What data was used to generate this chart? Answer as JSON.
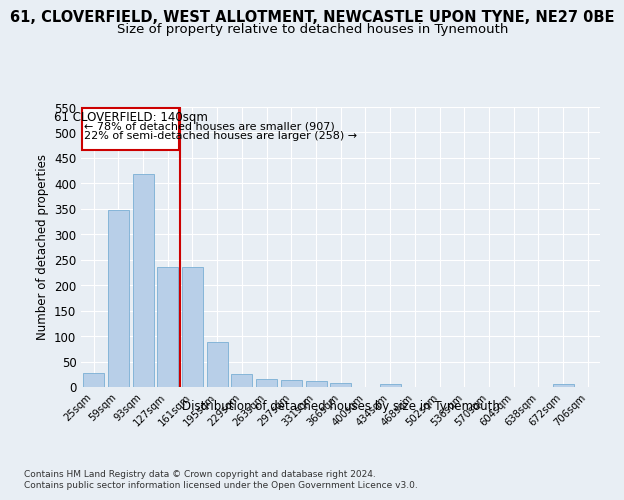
{
  "title": "61, CLOVERFIELD, WEST ALLOTMENT, NEWCASTLE UPON TYNE, NE27 0BE",
  "subtitle": "Size of property relative to detached houses in Tynemouth",
  "xlabel": "Distribution of detached houses by size in Tynemouth",
  "ylabel": "Number of detached properties",
  "bar_labels": [
    "25sqm",
    "59sqm",
    "93sqm",
    "127sqm",
    "161sqm",
    "195sqm",
    "229sqm",
    "263sqm",
    "297sqm",
    "331sqm",
    "366sqm",
    "400sqm",
    "434sqm",
    "468sqm",
    "502sqm",
    "536sqm",
    "570sqm",
    "604sqm",
    "638sqm",
    "672sqm",
    "706sqm"
  ],
  "bar_values": [
    28,
    348,
    418,
    235,
    236,
    88,
    25,
    15,
    14,
    11,
    7,
    0,
    5,
    0,
    0,
    0,
    0,
    0,
    0,
    5,
    0
  ],
  "bar_color": "#b8cfe8",
  "bar_edge_color": "#7aafd4",
  "property_line_label": "61 CLOVERFIELD: 140sqm",
  "annotation_line1": "← 78% of detached houses are smaller (907)",
  "annotation_line2": "22% of semi-detached houses are larger (258) →",
  "annotation_box_color": "#cc0000",
  "ylim": [
    0,
    550
  ],
  "footnote1": "Contains HM Land Registry data © Crown copyright and database right 2024.",
  "footnote2": "Contains public sector information licensed under the Open Government Licence v3.0.",
  "bg_color": "#e8eef4",
  "grid_color": "#ffffff",
  "title_fontsize": 10.5,
  "subtitle_fontsize": 9.5
}
